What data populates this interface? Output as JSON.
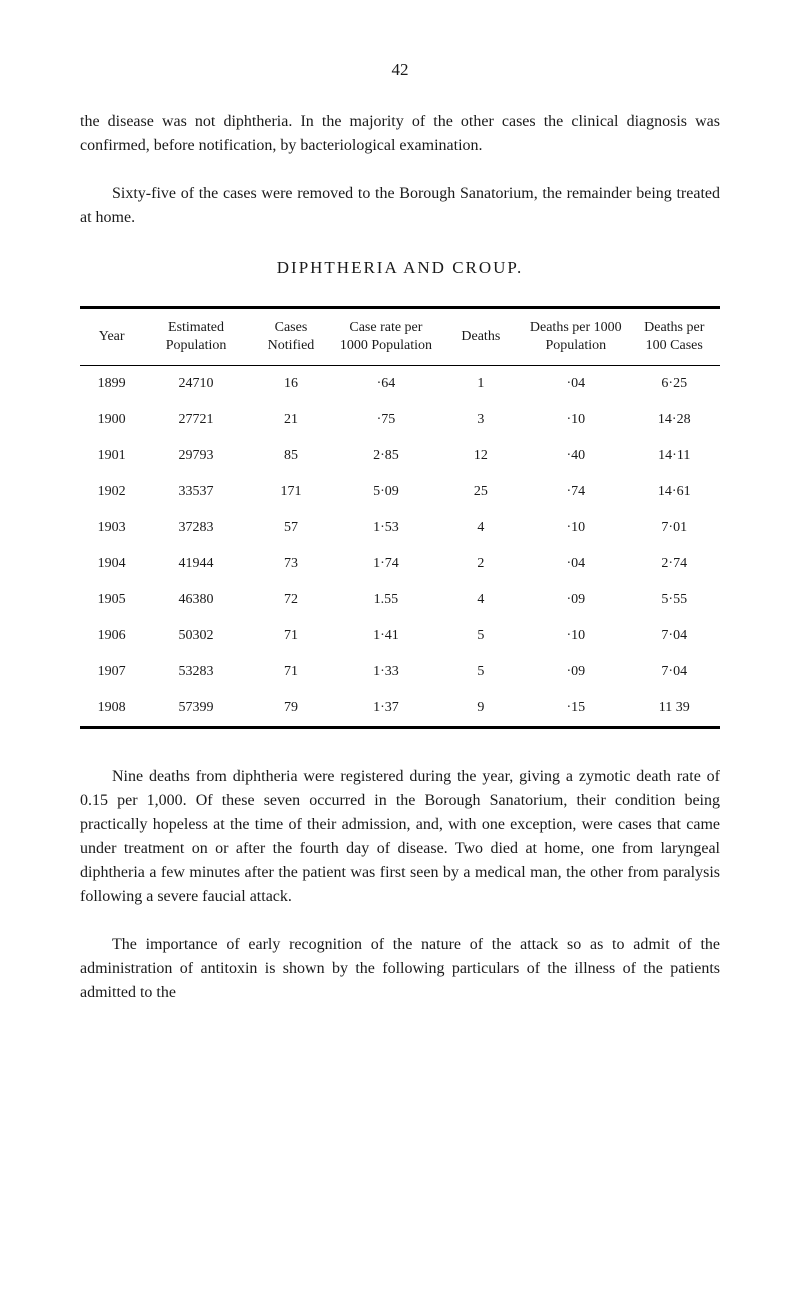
{
  "page_number": "42",
  "p1": "the disease was not diphtheria. In the majority of the other cases the clinical diagnosis was confirmed, before notification, by bacteriological examination.",
  "p2": "Sixty-five of the cases were removed to the Borough Sanatorium, the remainder being treated at home.",
  "table_title": "DIPHTHERIA AND CROUP.",
  "table": {
    "columns": [
      "Year",
      "Estimated Population",
      "Cases Notified",
      "Case rate per 1000 Population",
      "Deaths",
      "Deaths per 1000 Population",
      "Deaths per 100 Cases"
    ],
    "rows": [
      [
        "1899",
        "24710",
        "16",
        "·64",
        "1",
        "·04",
        "6·25"
      ],
      [
        "1900",
        "27721",
        "21",
        "·75",
        "3",
        "·10",
        "14·28"
      ],
      [
        "1901",
        "29793",
        "85",
        "2·85",
        "12",
        "·40",
        "14·11"
      ],
      [
        "1902",
        "33537",
        "171",
        "5·09",
        "25",
        "·74",
        "14·61"
      ],
      [
        "1903",
        "37283",
        "57",
        "1·53",
        "4",
        "·10",
        "7·01"
      ],
      [
        "1904",
        "41944",
        "73",
        "1·74",
        "2",
        "·04",
        "2·74"
      ],
      [
        "1905",
        "46380",
        "72",
        "1.55",
        "4",
        "·09",
        "5·55"
      ],
      [
        "1906",
        "50302",
        "71",
        "1·41",
        "5",
        "·10",
        "7·04"
      ],
      [
        "1907",
        "53283",
        "71",
        "1·33",
        "5",
        "·09",
        "7·04"
      ],
      [
        "1908",
        "57399",
        "79",
        "1·37",
        "9",
        "·15",
        "11 39"
      ]
    ]
  },
  "p3": "Nine deaths from diphtheria were registered during the year, giving a zymotic death rate of 0.15 per 1,000. Of these seven occurred in the Borough Sanatorium, their condition being practically hopeless at the time of their admission, and, with one exception, were cases that came under treatment on or after the fourth day of disease. Two died at home, one from laryngeal diphtheria a few minutes after the patient was first seen by a medical man, the other from paralysis following a severe faucial attack.",
  "p4": "The importance of early recognition of the nature of the attack so as to admit of the administration of antitoxin is shown by the following particulars of the illness of the patients admitted to the"
}
